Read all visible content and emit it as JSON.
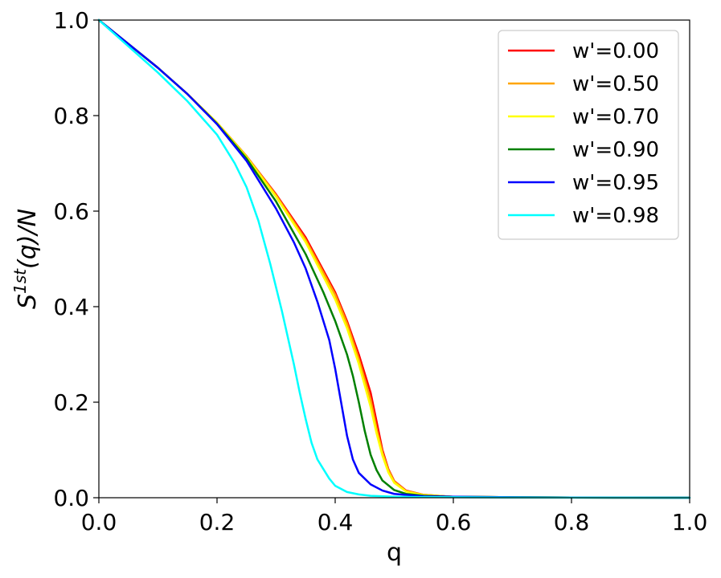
{
  "chart_data": {
    "type": "line",
    "title": "",
    "xlabel": "q",
    "ylabel": "S^{1st}(q)/N",
    "ylabel_parts": {
      "base": "S",
      "sup": "1st",
      "rest": "(q)/N"
    },
    "xlim": [
      0.0,
      1.0
    ],
    "ylim": [
      0.0,
      1.0
    ],
    "xticks": [
      "0.0",
      "0.2",
      "0.4",
      "0.6",
      "0.8",
      "1.0"
    ],
    "yticks": [
      "0.0",
      "0.2",
      "0.4",
      "0.6",
      "0.8",
      "1.0"
    ],
    "grid": false,
    "legend_position": "top-right",
    "series": [
      {
        "name": "w'=0.00",
        "color": "#ff0000",
        "x": [
          0,
          0.05,
          0.1,
          0.15,
          0.2,
          0.25,
          0.3,
          0.35,
          0.4,
          0.42,
          0.44,
          0.46,
          0.47,
          0.48,
          0.49,
          0.5,
          0.52,
          0.55,
          0.6,
          0.7,
          0.8,
          0.9,
          1.0
        ],
        "y": [
          1.0,
          0.95,
          0.9,
          0.845,
          0.785,
          0.715,
          0.635,
          0.545,
          0.43,
          0.37,
          0.3,
          0.22,
          0.16,
          0.1,
          0.06,
          0.035,
          0.015,
          0.006,
          0.002,
          0.001,
          0.0005,
          0.0002,
          0.0
        ]
      },
      {
        "name": "w'=0.50",
        "color": "#ffa500",
        "x": [
          0,
          0.05,
          0.1,
          0.15,
          0.2,
          0.25,
          0.3,
          0.35,
          0.4,
          0.42,
          0.44,
          0.46,
          0.47,
          0.48,
          0.49,
          0.5,
          0.52,
          0.55,
          0.6,
          0.7,
          0.8,
          0.9,
          1.0
        ],
        "y": [
          1.0,
          0.95,
          0.9,
          0.845,
          0.785,
          0.715,
          0.633,
          0.54,
          0.425,
          0.365,
          0.29,
          0.205,
          0.145,
          0.095,
          0.058,
          0.034,
          0.014,
          0.006,
          0.002,
          0.001,
          0.0005,
          0.0002,
          0.0
        ]
      },
      {
        "name": "w'=0.70",
        "color": "#ffff00",
        "x": [
          0,
          0.05,
          0.1,
          0.15,
          0.2,
          0.25,
          0.3,
          0.35,
          0.4,
          0.42,
          0.44,
          0.46,
          0.47,
          0.48,
          0.49,
          0.5,
          0.52,
          0.55,
          0.6,
          0.7,
          0.8,
          0.9,
          1.0
        ],
        "y": [
          1.0,
          0.95,
          0.9,
          0.845,
          0.785,
          0.713,
          0.63,
          0.535,
          0.415,
          0.355,
          0.28,
          0.19,
          0.135,
          0.088,
          0.053,
          0.031,
          0.013,
          0.005,
          0.002,
          0.001,
          0.0005,
          0.0002,
          0.0
        ]
      },
      {
        "name": "w'=0.90",
        "color": "#008000",
        "x": [
          0,
          0.05,
          0.1,
          0.15,
          0.2,
          0.25,
          0.3,
          0.35,
          0.38,
          0.4,
          0.42,
          0.43,
          0.44,
          0.45,
          0.46,
          0.47,
          0.48,
          0.5,
          0.52,
          0.55,
          0.6,
          0.7,
          0.8,
          0.9,
          1.0
        ],
        "y": [
          1.0,
          0.95,
          0.9,
          0.845,
          0.783,
          0.71,
          0.62,
          0.51,
          0.43,
          0.37,
          0.3,
          0.255,
          0.2,
          0.14,
          0.09,
          0.058,
          0.036,
          0.016,
          0.008,
          0.004,
          0.002,
          0.001,
          0.0005,
          0.0002,
          0.0
        ]
      },
      {
        "name": "w'=0.95",
        "color": "#0000ff",
        "x": [
          0,
          0.05,
          0.1,
          0.15,
          0.2,
          0.25,
          0.3,
          0.33,
          0.35,
          0.37,
          0.39,
          0.4,
          0.41,
          0.42,
          0.43,
          0.44,
          0.46,
          0.48,
          0.5,
          0.55,
          0.6,
          0.7,
          0.8,
          0.9,
          1.0
        ],
        "y": [
          1.0,
          0.95,
          0.9,
          0.845,
          0.782,
          0.705,
          0.605,
          0.535,
          0.48,
          0.41,
          0.33,
          0.27,
          0.2,
          0.13,
          0.08,
          0.052,
          0.028,
          0.015,
          0.008,
          0.003,
          0.002,
          0.001,
          0.0005,
          0.0002,
          0.0
        ]
      },
      {
        "name": "w'=0.98",
        "color": "#00ffff",
        "x": [
          0,
          0.05,
          0.1,
          0.15,
          0.2,
          0.23,
          0.25,
          0.27,
          0.29,
          0.31,
          0.33,
          0.34,
          0.35,
          0.36,
          0.37,
          0.38,
          0.39,
          0.4,
          0.42,
          0.44,
          0.46,
          0.5,
          0.6,
          0.7,
          0.8,
          0.9,
          1.0
        ],
        "y": [
          1.0,
          0.945,
          0.89,
          0.83,
          0.76,
          0.7,
          0.65,
          0.58,
          0.49,
          0.39,
          0.28,
          0.22,
          0.165,
          0.115,
          0.08,
          0.06,
          0.04,
          0.025,
          0.012,
          0.007,
          0.004,
          0.002,
          0.001,
          0.0005,
          0.0003,
          0.0002,
          0.0
        ]
      }
    ]
  }
}
